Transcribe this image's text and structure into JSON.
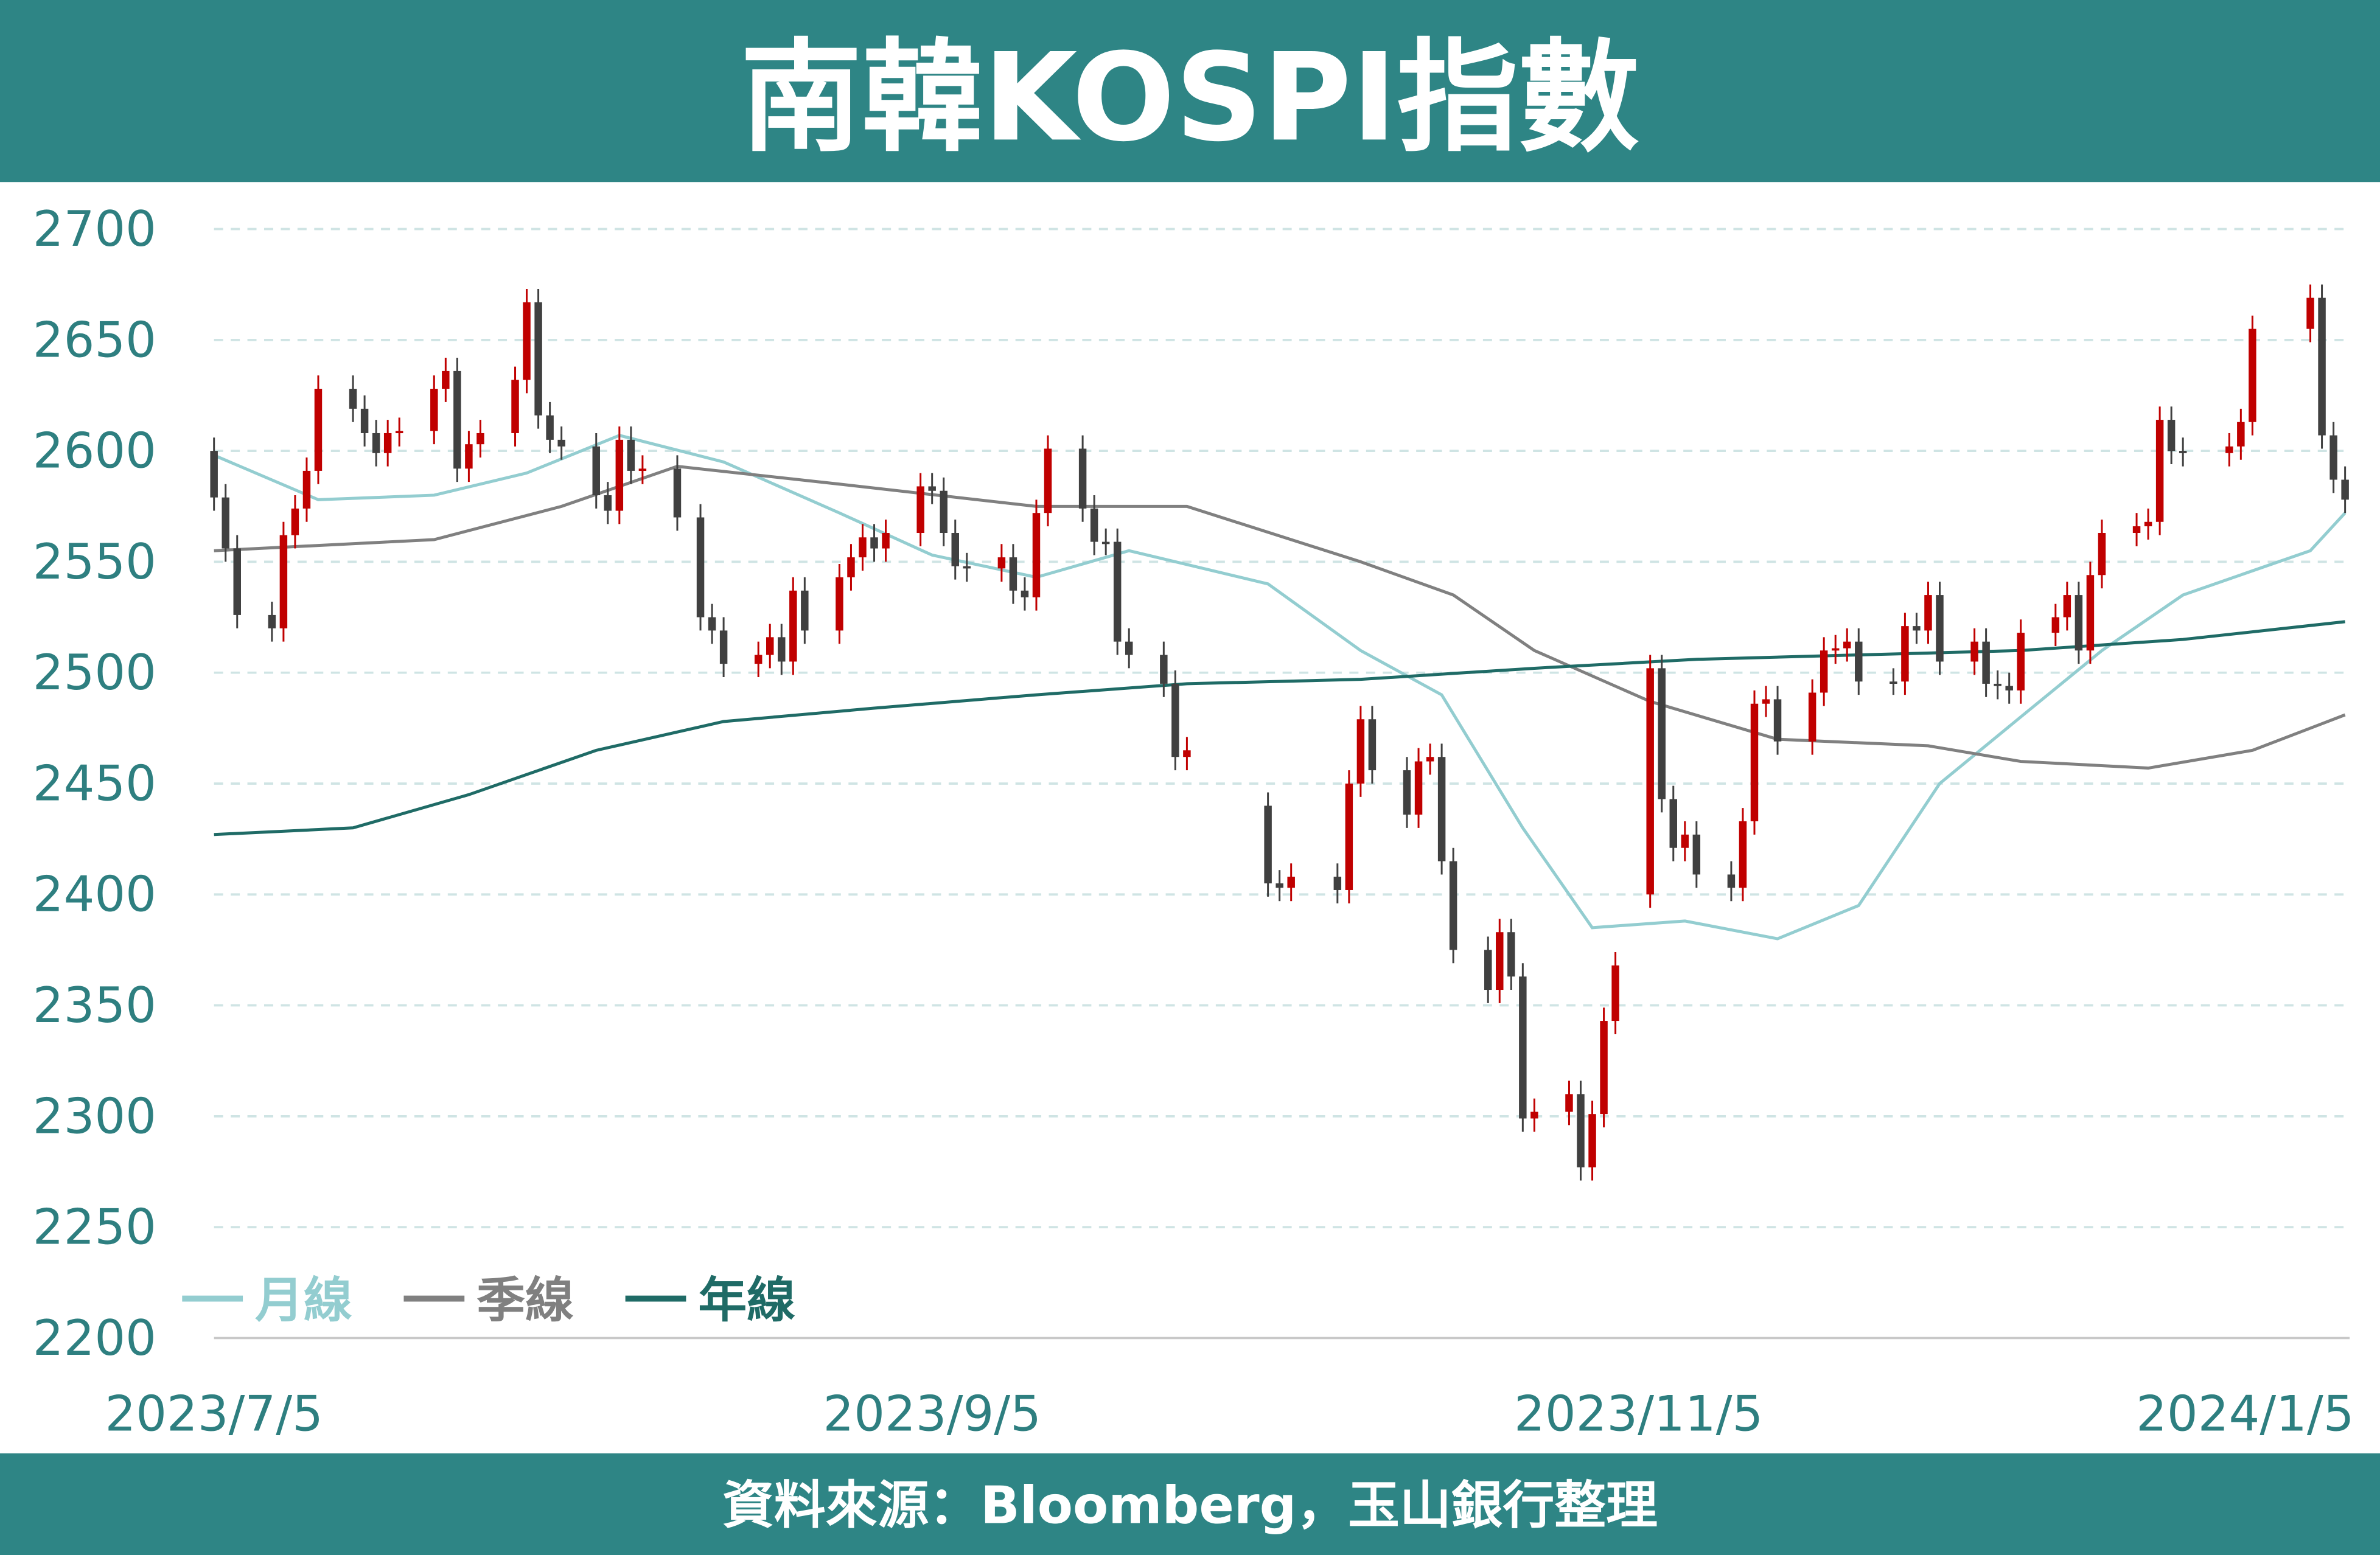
{
  "chart_data": {
    "type": "candlestick",
    "title": "南韓KOSPI指數",
    "source": "資料來源：Bloomberg，玉山銀行整理",
    "x": [
      "2023/7/5",
      "2023/7/6",
      "2023/7/7",
      "2023/7/10",
      "2023/7/11",
      "2023/7/12",
      "2023/7/13",
      "2023/7/14",
      "2023/7/17",
      "2023/7/18",
      "2023/7/19",
      "2023/7/20",
      "2023/7/21",
      "2023/7/24",
      "2023/7/25",
      "2023/7/26",
      "2023/7/27",
      "2023/7/28",
      "2023/7/31",
      "2023/8/1",
      "2023/8/2",
      "2023/8/3",
      "2023/8/4",
      "2023/8/7",
      "2023/8/8",
      "2023/8/9",
      "2023/8/10",
      "2023/8/11",
      "2023/8/14",
      "2023/8/16",
      "2023/8/17",
      "2023/8/18",
      "2023/8/21",
      "2023/8/22",
      "2023/8/23",
      "2023/8/24",
      "2023/8/25",
      "2023/8/28",
      "2023/8/29",
      "2023/8/30",
      "2023/8/31",
      "2023/9/1",
      "2023/9/4",
      "2023/9/5",
      "2023/9/6",
      "2023/9/7",
      "2023/9/8",
      "2023/9/11",
      "2023/9/12",
      "2023/9/13",
      "2023/9/14",
      "2023/9/15",
      "2023/9/18",
      "2023/9/19",
      "2023/9/20",
      "2023/9/21",
      "2023/9/22",
      "2023/9/25",
      "2023/9/26",
      "2023/9/27",
      "2023/10/4",
      "2023/10/5",
      "2023/10/6",
      "2023/10/10",
      "2023/10/11",
      "2023/10/12",
      "2023/10/13",
      "2023/10/16",
      "2023/10/17",
      "2023/10/18",
      "2023/10/19",
      "2023/10/20",
      "2023/10/23",
      "2023/10/24",
      "2023/10/25",
      "2023/10/26",
      "2023/10/27",
      "2023/10/30",
      "2023/10/31",
      "2023/11/1",
      "2023/11/2",
      "2023/11/3",
      "2023/11/6",
      "2023/11/7",
      "2023/11/8",
      "2023/11/9",
      "2023/11/10",
      "2023/11/13",
      "2023/11/14",
      "2023/11/15",
      "2023/11/16",
      "2023/11/17",
      "2023/11/20",
      "2023/11/21",
      "2023/11/22",
      "2023/11/23",
      "2023/11/24",
      "2023/11/27",
      "2023/11/28",
      "2023/11/29",
      "2023/11/30",
      "2023/12/1",
      "2023/12/4",
      "2023/12/5",
      "2023/12/6",
      "2023/12/7",
      "2023/12/8",
      "2023/12/11",
      "2023/12/12",
      "2023/12/13",
      "2023/12/14",
      "2023/12/15",
      "2023/12/18",
      "2023/12/19",
      "2023/12/20",
      "2023/12/21",
      "2023/12/22",
      "2023/12/26",
      "2023/12/27",
      "2023/12/28",
      "2024/1/2",
      "2024/1/3",
      "2024/1/4",
      "2024/1/5"
    ],
    "open": [
      2600,
      2579,
      2556,
      2526,
      2520,
      2562,
      2574,
      2591,
      2628,
      2619,
      2608,
      2599,
      2608,
      2609,
      2628,
      2636,
      2592,
      2603,
      2608,
      2632,
      2667,
      2616,
      2605,
      2602,
      2580,
      2573,
      2605,
      2591,
      2592,
      2570,
      2525,
      2519,
      2504,
      2508,
      2516,
      2505,
      2537,
      2519,
      2543,
      2552,
      2561,
      2556,
      2563,
      2584,
      2582,
      2563,
      2548,
      2547,
      2552,
      2537,
      2534,
      2572,
      2601,
      2574,
      2559,
      2559,
      2514,
      2508,
      2495,
      2462,
      2440,
      2405,
      2403,
      2408,
      2402,
      2450,
      2479,
      2456,
      2436,
      2460,
      2462,
      2415,
      2375,
      2357,
      2383,
      2363,
      2299,
      2302,
      2310,
      2277,
      2301,
      2343,
      2400,
      2502,
      2443,
      2421,
      2427,
      2409,
      2403,
      2433,
      2486,
      2488,
      2469,
      2491,
      2510,
      2511,
      2514,
      2496,
      2496,
      2521,
      2519,
      2535,
      2505,
      2514,
      2495,
      2494,
      2492,
      2518,
      2525,
      2535,
      2510,
      2544,
      2563,
      2566,
      2568,
      2614,
      2600,
      2599,
      2602,
      2613,
      2655,
      2669,
      2607,
      2587
    ],
    "high": [
      2606,
      2585,
      2562,
      2532,
      2568,
      2580,
      2597,
      2634,
      2634,
      2625,
      2614,
      2614,
      2615,
      2634,
      2642,
      2642,
      2609,
      2614,
      2638,
      2673,
      2673,
      2622,
      2611,
      2608,
      2586,
      2611,
      2611,
      2598,
      2598,
      2576,
      2531,
      2525,
      2514,
      2522,
      2522,
      2543,
      2543,
      2549,
      2558,
      2567,
      2567,
      2569,
      2590,
      2590,
      2588,
      2569,
      2554,
      2558,
      2558,
      2543,
      2578,
      2607,
      2607,
      2580,
      2565,
      2565,
      2520,
      2514,
      2501,
      2471,
      2446,
      2411,
      2414,
      2414,
      2456,
      2485,
      2485,
      2462,
      2466,
      2468,
      2468,
      2421,
      2381,
      2389,
      2389,
      2369,
      2308,
      2316,
      2316,
      2307,
      2349,
      2374,
      2508,
      2508,
      2449,
      2433,
      2433,
      2415,
      2439,
      2492,
      2494,
      2494,
      2497,
      2516,
      2517,
      2520,
      2520,
      2502,
      2527,
      2527,
      2541,
      2541,
      2520,
      2520,
      2501,
      2500,
      2524,
      2531,
      2541,
      2541,
      2550,
      2569,
      2572,
      2574,
      2620,
      2620,
      2606,
      2608,
      2619,
      2661,
      2675,
      2675,
      2613,
      2593
    ],
    "low": [
      2573,
      2550,
      2520,
      2514,
      2514,
      2556,
      2568,
      2585,
      2613,
      2602,
      2593,
      2593,
      2602,
      2603,
      2622,
      2586,
      2586,
      2597,
      2602,
      2626,
      2610,
      2599,
      2596,
      2574,
      2567,
      2567,
      2585,
      2585,
      2564,
      2519,
      2513,
      2498,
      2498,
      2502,
      2499,
      2499,
      2513,
      2513,
      2537,
      2546,
      2550,
      2550,
      2557,
      2576,
      2557,
      2542,
      2541,
      2541,
      2531,
      2528,
      2528,
      2566,
      2568,
      2553,
      2553,
      2508,
      2502,
      2489,
      2456,
      2456,
      2399,
      2397,
      2397,
      2396,
      2396,
      2444,
      2450,
      2430,
      2430,
      2454,
      2409,
      2369,
      2351,
      2351,
      2357,
      2293,
      2293,
      2296,
      2271,
      2271,
      2295,
      2337,
      2394,
      2437,
      2415,
      2415,
      2403,
      2397,
      2397,
      2427,
      2480,
      2463,
      2463,
      2485,
      2504,
      2505,
      2490,
      2490,
      2490,
      2513,
      2513,
      2499,
      2499,
      2489,
      2488,
      2486,
      2486,
      2512,
      2519,
      2504,
      2504,
      2538,
      2557,
      2560,
      2562,
      2594,
      2593,
      2593,
      2596,
      2607,
      2649,
      2601,
      2581,
      2572
    ],
    "close": [
      2579,
      2556,
      2526,
      2520,
      2562,
      2574,
      2591,
      2628,
      2619,
      2608,
      2599,
      2608,
      2609,
      2628,
      2636,
      2592,
      2603,
      2608,
      2632,
      2667,
      2616,
      2605,
      2602,
      2580,
      2573,
      2605,
      2591,
      2592,
      2570,
      2525,
      2519,
      2504,
      2508,
      2516,
      2505,
      2537,
      2519,
      2543,
      2552,
      2561,
      2556,
      2563,
      2584,
      2582,
      2563,
      2548,
      2547,
      2552,
      2537,
      2534,
      2572,
      2601,
      2574,
      2559,
      2559,
      2514,
      2508,
      2495,
      2462,
      2465,
      2405,
      2403,
      2408,
      2402,
      2450,
      2479,
      2456,
      2436,
      2460,
      2462,
      2415,
      2375,
      2357,
      2383,
      2363,
      2299,
      2302,
      2310,
      2277,
      2301,
      2343,
      2368,
      2502,
      2443,
      2421,
      2427,
      2409,
      2403,
      2433,
      2486,
      2488,
      2469,
      2491,
      2510,
      2511,
      2514,
      2496,
      2496,
      2521,
      2519,
      2535,
      2505,
      2514,
      2495,
      2494,
      2492,
      2518,
      2525,
      2535,
      2510,
      2544,
      2563,
      2566,
      2568,
      2614,
      2600,
      2599,
      2602,
      2613,
      2655,
      2669,
      2607,
      2587,
      2578
    ],
    "up_color": "#c00000",
    "down_color": "#404040",
    "xlim": [
      "2023/7/5",
      "2024/1/5"
    ],
    "xticks": [
      "2023/7/5",
      "2023/9/5",
      "2023/11/5",
      "2024/1/5"
    ],
    "ylim": [
      2200,
      2700
    ],
    "yticks": [
      2200,
      2250,
      2300,
      2350,
      2400,
      2450,
      2500,
      2550,
      2600,
      2650,
      2700
    ],
    "grid": true,
    "legend": "lower left",
    "series": [
      {
        "name": "月線",
        "color": "#93cdd0",
        "x": [
          "2023/7/5",
          "2023/7/14",
          "2023/7/24",
          "2023/8/1",
          "2023/8/9",
          "2023/8/18",
          "2023/8/28",
          "2023/9/5",
          "2023/9/14",
          "2023/9/22",
          "2023/10/4",
          "2023/10/12",
          "2023/10/19",
          "2023/10/26",
          "2023/11/1",
          "2023/11/9",
          "2023/11/17",
          "2023/11/24",
          "2023/12/1",
          "2023/12/8",
          "2023/12/15",
          "2023/12/22",
          "2024/1/2",
          "2024/1/5"
        ],
        "values": [
          2598,
          2578,
          2580,
          2590,
          2607,
          2595,
          2572,
          2553,
          2543,
          2555,
          2540,
          2510,
          2490,
          2430,
          2385,
          2388,
          2380,
          2395,
          2450,
          2480,
          2510,
          2535,
          2555,
          2572
        ]
      },
      {
        "name": "季線",
        "color": "#808080",
        "x": [
          "2023/7/5",
          "2023/7/24",
          "2023/8/4",
          "2023/8/14",
          "2023/8/28",
          "2023/9/14",
          "2023/9/27",
          "2023/10/12",
          "2023/10/20",
          "2023/10/27",
          "2023/11/6",
          "2023/11/17",
          "2023/11/30",
          "2023/12/8",
          "2023/12/19",
          "2023/12/28",
          "2024/1/5"
        ],
        "values": [
          2555,
          2560,
          2575,
          2593,
          2585,
          2575,
          2575,
          2550,
          2535,
          2510,
          2487,
          2470,
          2467,
          2460,
          2457,
          2465,
          2481
        ]
      },
      {
        "name": "年線",
        "color": "#1f6b66",
        "x": [
          "2023/7/5",
          "2023/7/17",
          "2023/7/27",
          "2023/8/7",
          "2023/8/18",
          "2023/8/31",
          "2023/9/14",
          "2023/9/27",
          "2023/10/12",
          "2023/10/27",
          "2023/11/10",
          "2023/11/24",
          "2023/12/8",
          "2023/12/22",
          "2024/1/5"
        ],
        "values": [
          2427,
          2430,
          2445,
          2465,
          2478,
          2484,
          2490,
          2495,
          2497,
          2502,
          2506,
          2508,
          2510,
          2515,
          2523
        ]
      }
    ]
  }
}
